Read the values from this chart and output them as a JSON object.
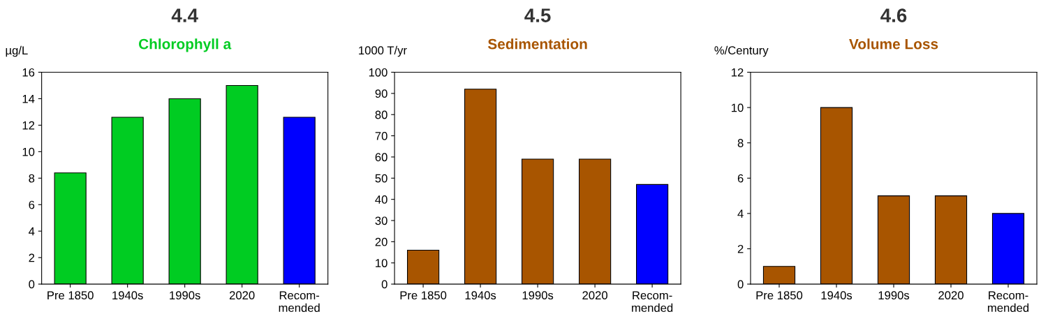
{
  "chart_data": [
    {
      "type": "bar",
      "title": "4.4",
      "subtitle": "Chlorophyll a",
      "ylabel": "µg/L",
      "categories": [
        "Pre 1850",
        "1940s",
        "1990s",
        "2020",
        "Recom-\nmended"
      ],
      "values": [
        8.4,
        12.6,
        14,
        15,
        12.6
      ],
      "colors": [
        "#00cc22",
        "#00cc22",
        "#00cc22",
        "#00cc22",
        "#0000ff"
      ],
      "ylim": [
        0,
        16
      ],
      "yticks": [
        0,
        2,
        4,
        6,
        8,
        10,
        12,
        14,
        16
      ],
      "grid": false,
      "legend": false
    },
    {
      "type": "bar",
      "title": "4.5",
      "subtitle": "Sedimentation",
      "ylabel": "1000 T/yr",
      "categories": [
        "Pre 1850",
        "1940s",
        "1990s",
        "2020",
        "Recom-\nmended"
      ],
      "values": [
        16,
        92,
        59,
        59,
        47
      ],
      "colors": [
        "#a85500",
        "#a85500",
        "#a85500",
        "#a85500",
        "#0000ff"
      ],
      "ylim": [
        0,
        100
      ],
      "yticks": [
        0,
        10,
        20,
        30,
        40,
        50,
        60,
        70,
        80,
        90,
        100
      ],
      "grid": false,
      "legend": false
    },
    {
      "type": "bar",
      "title": "4.6",
      "subtitle": "Volume Loss",
      "ylabel": "%/Century",
      "categories": [
        "Pre 1850",
        "1940s",
        "1990s",
        "2020",
        "Recom-\nmended"
      ],
      "values": [
        1,
        10,
        5,
        5,
        4
      ],
      "colors": [
        "#a85500",
        "#a85500",
        "#a85500",
        "#a85500",
        "#0000ff"
      ],
      "ylim": [
        0,
        12
      ],
      "yticks": [
        0,
        2,
        4,
        6,
        8,
        10,
        12
      ],
      "grid": false,
      "legend": false
    }
  ]
}
